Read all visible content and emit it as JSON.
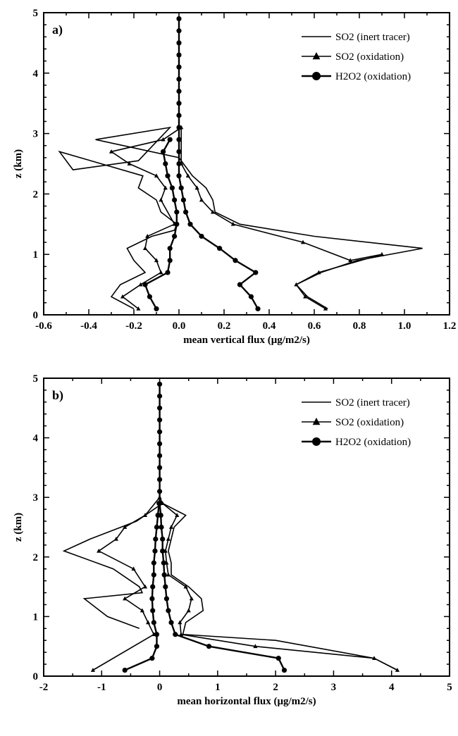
{
  "chart_data": [
    {
      "type": "line",
      "panel_label": "a)",
      "xlabel": "mean vertical flux (μg/m2/s)",
      "ylabel": "z (km)",
      "xlim": [
        -0.6,
        1.2
      ],
      "ylim": [
        0,
        5
      ],
      "xticks": [
        "-0.6",
        "-0.4",
        "-0.2",
        "0.0",
        "0.2",
        "0.4",
        "0.6",
        "0.8",
        "1.0",
        "1.2"
      ],
      "yticks": [
        "0",
        "1",
        "2",
        "3",
        "4",
        "5"
      ],
      "legend_position": "top-right",
      "series": [
        {
          "name": "SO2 (inert tracer)",
          "marker": "none",
          "points": [
            [
              0.66,
              0.1
            ],
            [
              0.57,
              0.3
            ],
            [
              0.52,
              0.5
            ],
            [
              0.63,
              0.7
            ],
            [
              0.79,
              0.9
            ],
            [
              1.08,
              1.1
            ],
            [
              0.6,
              1.3
            ],
            [
              0.27,
              1.5
            ],
            [
              0.16,
              1.7
            ],
            [
              0.15,
              1.9
            ],
            [
              0.12,
              2.1
            ],
            [
              0.06,
              2.3
            ],
            [
              0.02,
              2.5
            ],
            [
              0.0,
              2.6
            ],
            [
              -0.37,
              2.9
            ],
            [
              -0.04,
              3.1
            ],
            [
              -0.18,
              2.55
            ],
            [
              -0.47,
              2.4
            ],
            [
              -0.53,
              2.7
            ],
            [
              -0.16,
              2.3
            ],
            [
              -0.18,
              2.1
            ],
            [
              -0.1,
              1.9
            ],
            [
              -0.08,
              1.7
            ],
            [
              -0.01,
              1.5
            ],
            [
              -0.02,
              1.4
            ],
            [
              -0.12,
              1.3
            ],
            [
              -0.23,
              1.1
            ],
            [
              -0.2,
              0.9
            ],
            [
              -0.15,
              0.7
            ],
            [
              -0.26,
              0.5
            ],
            [
              -0.3,
              0.3
            ],
            [
              -0.2,
              0.1
            ]
          ]
        },
        {
          "name": "SO2 (oxidation)",
          "marker": "triangle",
          "points": [
            [
              0.65,
              0.1
            ],
            [
              0.56,
              0.3
            ],
            [
              0.52,
              0.5
            ],
            [
              0.62,
              0.7
            ],
            [
              0.9,
              1.0
            ],
            [
              0.76,
              0.9
            ],
            [
              0.55,
              1.2
            ],
            [
              0.24,
              1.5
            ],
            [
              0.15,
              1.7
            ],
            [
              0.1,
              1.9
            ],
            [
              0.08,
              2.1
            ],
            [
              0.04,
              2.3
            ],
            [
              0.01,
              2.5
            ],
            [
              0.01,
              3.1
            ],
            [
              -0.07,
              2.9
            ],
            [
              -0.3,
              2.7
            ],
            [
              -0.22,
              2.5
            ],
            [
              -0.1,
              2.3
            ],
            [
              -0.06,
              2.1
            ],
            [
              -0.08,
              1.9
            ],
            [
              -0.02,
              1.5
            ],
            [
              -0.14,
              1.3
            ],
            [
              -0.15,
              1.1
            ],
            [
              -0.1,
              0.9
            ],
            [
              -0.08,
              0.7
            ],
            [
              -0.17,
              0.5
            ],
            [
              -0.25,
              0.3
            ],
            [
              -0.18,
              0.1
            ]
          ]
        },
        {
          "name": "H2O2 (oxidation)",
          "marker": "circle",
          "points": [
            [
              0.35,
              0.1
            ],
            [
              0.32,
              0.3
            ],
            [
              0.27,
              0.5
            ],
            [
              0.34,
              0.7
            ],
            [
              0.25,
              0.9
            ],
            [
              0.18,
              1.1
            ],
            [
              0.1,
              1.3
            ],
            [
              0.05,
              1.5
            ],
            [
              0.03,
              1.7
            ],
            [
              0.02,
              1.9
            ],
            [
              0.01,
              2.1
            ],
            [
              0.0,
              2.3
            ],
            [
              0.0,
              2.5
            ],
            [
              0.0,
              2.7
            ],
            [
              0.0,
              2.9
            ],
            [
              0.0,
              3.1
            ],
            [
              0.0,
              3.3
            ],
            [
              0.0,
              3.5
            ],
            [
              0.0,
              3.7
            ],
            [
              0.0,
              3.9
            ],
            [
              0.0,
              4.1
            ],
            [
              0.0,
              4.3
            ],
            [
              0.0,
              4.5
            ],
            [
              0.0,
              4.7
            ],
            [
              0.0,
              4.9
            ]
          ],
          "points_neg": [
            [
              -0.1,
              0.1
            ],
            [
              -0.13,
              0.3
            ],
            [
              -0.15,
              0.5
            ],
            [
              -0.05,
              0.7
            ],
            [
              -0.04,
              0.9
            ],
            [
              -0.04,
              1.1
            ],
            [
              -0.02,
              1.3
            ],
            [
              -0.01,
              1.5
            ],
            [
              -0.01,
              1.7
            ],
            [
              -0.02,
              1.9
            ],
            [
              -0.03,
              2.1
            ],
            [
              -0.05,
              2.3
            ],
            [
              -0.06,
              2.5
            ],
            [
              -0.07,
              2.7
            ],
            [
              -0.04,
              2.9
            ]
          ]
        }
      ]
    },
    {
      "type": "line",
      "panel_label": "b)",
      "xlabel": "mean horizontal flux (μg/m2/s)",
      "ylabel": "z (km)",
      "xlim": [
        -2,
        5
      ],
      "ylim": [
        0,
        5
      ],
      "xticks": [
        "-2",
        "-1",
        "0",
        "1",
        "2",
        "3",
        "4",
        "5"
      ],
      "yticks": [
        "0",
        "1",
        "2",
        "3",
        "4",
        "5"
      ],
      "legend_position": "top-right",
      "series": [
        {
          "name": "SO2 (inert tracer)",
          "marker": "none",
          "points": [
            [
              4.1,
              0.1
            ],
            [
              3.7,
              0.3
            ],
            [
              2.0,
              0.6
            ],
            [
              0.4,
              0.7
            ],
            [
              0.45,
              0.9
            ],
            [
              0.75,
              1.1
            ],
            [
              0.72,
              1.3
            ],
            [
              0.5,
              1.5
            ],
            [
              0.2,
              1.7
            ],
            [
              0.2,
              1.9
            ],
            [
              0.15,
              2.1
            ],
            [
              0.2,
              2.3
            ],
            [
              0.25,
              2.5
            ],
            [
              0.45,
              2.7
            ],
            [
              0.05,
              2.9
            ],
            [
              -0.4,
              2.6
            ],
            [
              -1.2,
              2.3
            ],
            [
              -1.65,
              2.1
            ],
            [
              -0.8,
              1.8
            ],
            [
              -0.35,
              1.5
            ],
            [
              -0.3,
              1.4
            ],
            [
              -1.3,
              1.3
            ],
            [
              -0.9,
              1.0
            ],
            [
              -0.35,
              0.8
            ]
          ]
        },
        {
          "name": "SO2 (oxidation)",
          "marker": "triangle",
          "points": [
            [
              4.1,
              0.1
            ],
            [
              3.7,
              0.3
            ],
            [
              1.65,
              0.5
            ],
            [
              0.37,
              0.7
            ],
            [
              0.35,
              0.9
            ],
            [
              0.5,
              1.1
            ],
            [
              0.55,
              1.3
            ],
            [
              0.45,
              1.5
            ],
            [
              0.15,
              1.7
            ],
            [
              0.12,
              1.9
            ],
            [
              0.1,
              2.1
            ],
            [
              0.15,
              2.3
            ],
            [
              0.2,
              2.5
            ],
            [
              0.3,
              2.7
            ],
            [
              0.05,
              2.9
            ],
            [
              0.0,
              3.0
            ],
            [
              -0.25,
              2.7
            ],
            [
              -0.6,
              2.5
            ],
            [
              -0.75,
              2.3
            ],
            [
              -1.05,
              2.1
            ],
            [
              -0.45,
              1.8
            ],
            [
              -0.25,
              1.5
            ],
            [
              -0.6,
              1.3
            ],
            [
              -0.3,
              1.1
            ],
            [
              -0.2,
              0.9
            ],
            [
              -0.1,
              0.7
            ],
            [
              -1.15,
              0.1
            ]
          ]
        },
        {
          "name": "H2O2 (oxidation)",
          "marker": "circle",
          "points": [
            [
              2.15,
              0.1
            ],
            [
              2.05,
              0.3
            ],
            [
              0.85,
              0.5
            ],
            [
              0.27,
              0.7
            ],
            [
              0.2,
              0.9
            ],
            [
              0.15,
              1.1
            ],
            [
              0.12,
              1.3
            ],
            [
              0.1,
              1.5
            ],
            [
              0.08,
              1.7
            ],
            [
              0.07,
              1.9
            ],
            [
              0.05,
              2.1
            ],
            [
              0.05,
              2.3
            ],
            [
              0.03,
              2.5
            ],
            [
              0.02,
              2.7
            ],
            [
              0.0,
              2.9
            ],
            [
              0.0,
              3.1
            ],
            [
              0.0,
              3.3
            ],
            [
              0.0,
              3.5
            ],
            [
              0.0,
              3.7
            ],
            [
              0.0,
              3.9
            ],
            [
              0.0,
              4.1
            ],
            [
              0.0,
              4.3
            ],
            [
              0.0,
              4.5
            ],
            [
              0.0,
              4.7
            ],
            [
              0.0,
              4.9
            ]
          ],
          "points_neg": [
            [
              -0.6,
              0.1
            ],
            [
              -0.13,
              0.3
            ],
            [
              -0.05,
              0.5
            ],
            [
              -0.05,
              0.7
            ],
            [
              -0.1,
              0.9
            ],
            [
              -0.12,
              1.1
            ],
            [
              -0.13,
              1.3
            ],
            [
              -0.12,
              1.5
            ],
            [
              -0.1,
              1.7
            ],
            [
              -0.1,
              1.9
            ],
            [
              -0.08,
              2.1
            ],
            [
              -0.07,
              2.3
            ],
            [
              -0.05,
              2.5
            ],
            [
              -0.03,
              2.7
            ],
            [
              -0.01,
              2.9
            ]
          ]
        }
      ]
    }
  ]
}
